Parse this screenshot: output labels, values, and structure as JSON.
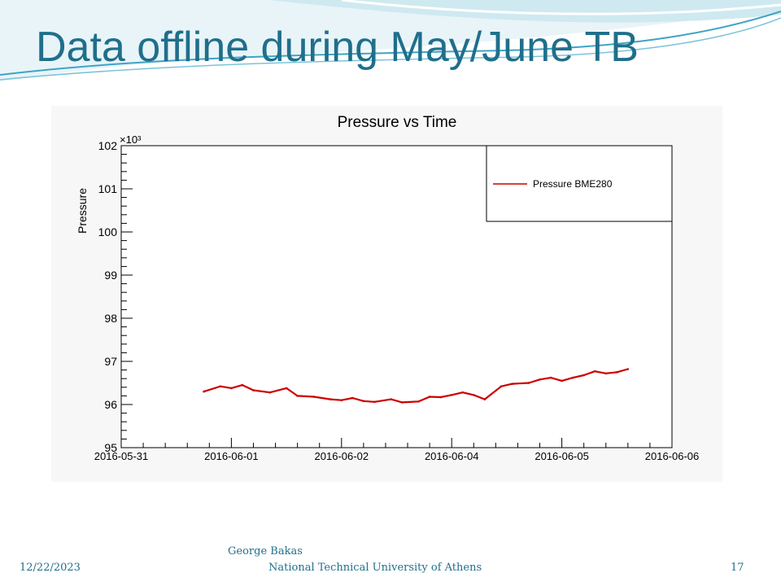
{
  "slide": {
    "title": "Data offline during May/June TB",
    "footer_date": "12/22/2023",
    "footer_author": "George Bakas",
    "footer_org": "National Technical University of Athens",
    "page_number": "17"
  },
  "colors": {
    "title": "#1f6f8b",
    "series": "#cc0000",
    "swoosh_light": "#cfe9f0",
    "swoosh_dark": "#3fa3c4"
  },
  "chart_data": {
    "type": "line",
    "title": "Pressure vs Time",
    "xlabel": "",
    "ylabel": "Pressure",
    "y_multiplier": "×10³",
    "ylim": [
      95,
      102
    ],
    "y_ticks": [
      "95",
      "96",
      "97",
      "98",
      "99",
      "100",
      "101",
      "102"
    ],
    "x_ticks": [
      "2016-05-31",
      "2016-06-01",
      "2016-06-02",
      "2016-06-04",
      "2016-06-05",
      "2016-06-06"
    ],
    "xlim": [
      0,
      5
    ],
    "grid": false,
    "legend_position": "top-right",
    "series": [
      {
        "name": "Pressure BME280",
        "x": [
          0.75,
          0.9,
          1.0,
          1.1,
          1.2,
          1.35,
          1.5,
          1.6,
          1.75,
          1.9,
          2.0,
          2.1,
          2.2,
          2.3,
          2.45,
          2.55,
          2.7,
          2.8,
          2.9,
          3.0,
          3.1,
          3.2,
          3.3,
          3.45,
          3.55,
          3.7,
          3.8,
          3.9,
          4.0,
          4.1,
          4.2,
          4.3,
          4.4,
          4.5,
          4.6
        ],
        "y": [
          96.3,
          96.42,
          96.38,
          96.45,
          96.33,
          96.28,
          96.38,
          96.2,
          96.18,
          96.12,
          96.1,
          96.15,
          96.08,
          96.06,
          96.12,
          96.05,
          96.07,
          96.18,
          96.17,
          96.22,
          96.28,
          96.22,
          96.12,
          96.42,
          96.48,
          96.5,
          96.58,
          96.62,
          96.55,
          96.62,
          96.68,
          96.77,
          96.72,
          96.75,
          96.82
        ]
      }
    ]
  }
}
